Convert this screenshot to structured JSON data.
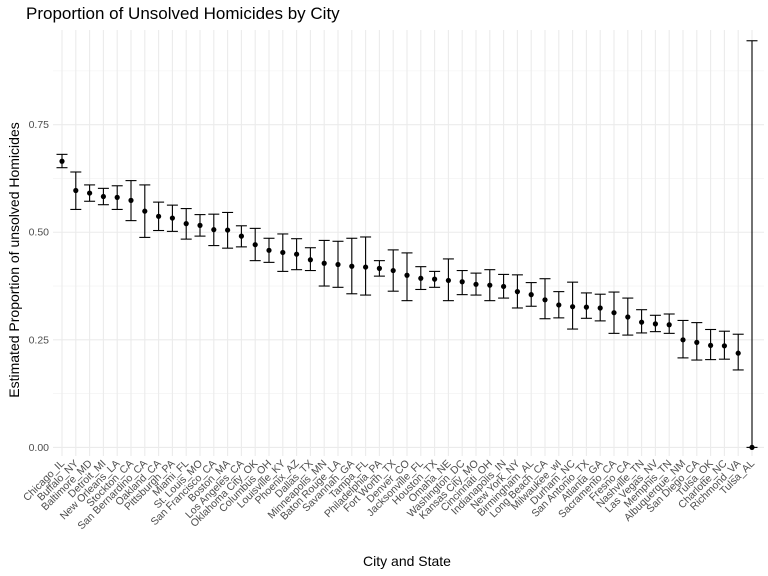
{
  "chart_data": {
    "type": "scatter",
    "title": "Proportion of Unsolved Homicides by City",
    "xlabel": "City and State",
    "ylabel": "Estimated Proportion of unsolved Homicides",
    "ylim": [
      -0.02,
      0.97
    ],
    "y_ticks": [
      0.0,
      0.25,
      0.5,
      0.75
    ],
    "y_tick_labels": [
      "0.00",
      "0.25",
      "0.50",
      "0.75"
    ],
    "grid": true,
    "error_bars": true,
    "point_color": "#000000",
    "categories": [
      "Chicago_IL",
      "Buffalo_NY",
      "Baltimore_MD",
      "Detroit_MI",
      "New Orleans_LA",
      "Stockton_CA",
      "San Bernardino_CA",
      "Oakland_CA",
      "Pittsburgh_PA",
      "Miami_FL",
      "St. Louis_MO",
      "San Francisco_CA",
      "Boston_MA",
      "Los Angeles_CA",
      "Oklahoma City_OK",
      "Columbus_OH",
      "Louisville_KY",
      "Phoenix_AZ",
      "Dallas_TX",
      "Minneapolis_MN",
      "Baton Rouge_LA",
      "Savannah_GA",
      "Tampa_FL",
      "Philadelphia_PA",
      "Fort Worth_TX",
      "Denver_CO",
      "Jacksonville_FL",
      "Houston_TX",
      "Omaha_NE",
      "Washington_DC",
      "Kansas City_MO",
      "Cincinnati_OH",
      "Indianapolis_IN",
      "New York_NY",
      "Birmingham_AL",
      "Long Beach_CA",
      "Milwaukee_wI",
      "Durham_NC",
      "San Antonio_TX",
      "Atlanta_GA",
      "Sacramento_CA",
      "Fresno_CA",
      "Nashville_TN",
      "Las Vegas_NV",
      "Memphis_TN",
      "Albuquerque_NM",
      "San Diego_CA",
      "Tulsa_OK",
      "Charlotte_NC",
      "Richmond_VA",
      "Tulsa_AL"
    ],
    "estimate": [
      0.665,
      0.597,
      0.591,
      0.583,
      0.581,
      0.574,
      0.549,
      0.537,
      0.533,
      0.52,
      0.516,
      0.506,
      0.505,
      0.491,
      0.471,
      0.458,
      0.453,
      0.449,
      0.436,
      0.428,
      0.425,
      0.421,
      0.419,
      0.416,
      0.411,
      0.4,
      0.393,
      0.391,
      0.388,
      0.385,
      0.379,
      0.377,
      0.374,
      0.362,
      0.355,
      0.343,
      0.331,
      0.327,
      0.326,
      0.324,
      0.313,
      0.303,
      0.291,
      0.287,
      0.285,
      0.25,
      0.244,
      0.237,
      0.236,
      0.219,
      0.0
    ],
    "ci_low": [
      0.65,
      0.553,
      0.572,
      0.564,
      0.553,
      0.527,
      0.488,
      0.504,
      0.502,
      0.484,
      0.491,
      0.469,
      0.463,
      0.466,
      0.434,
      0.43,
      0.409,
      0.413,
      0.411,
      0.375,
      0.372,
      0.357,
      0.354,
      0.398,
      0.363,
      0.341,
      0.367,
      0.372,
      0.341,
      0.355,
      0.354,
      0.341,
      0.347,
      0.324,
      0.328,
      0.299,
      0.301,
      0.275,
      0.3,
      0.294,
      0.265,
      0.261,
      0.266,
      0.269,
      0.265,
      0.208,
      0.203,
      0.204,
      0.205,
      0.18,
      0.0
    ],
    "ci_high": [
      0.681,
      0.64,
      0.61,
      0.602,
      0.608,
      0.62,
      0.61,
      0.57,
      0.563,
      0.555,
      0.541,
      0.542,
      0.546,
      0.515,
      0.509,
      0.486,
      0.496,
      0.485,
      0.464,
      0.481,
      0.479,
      0.486,
      0.489,
      0.434,
      0.459,
      0.452,
      0.42,
      0.409,
      0.438,
      0.411,
      0.405,
      0.413,
      0.402,
      0.401,
      0.383,
      0.392,
      0.362,
      0.384,
      0.359,
      0.356,
      0.361,
      0.347,
      0.32,
      0.307,
      0.31,
      0.295,
      0.29,
      0.274,
      0.27,
      0.263,
      0.945
    ]
  }
}
